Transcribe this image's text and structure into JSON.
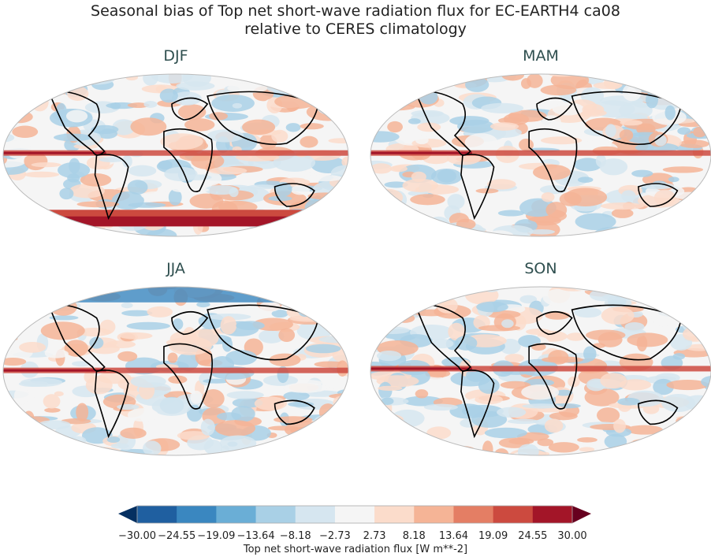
{
  "title_line1": "Seasonal bias of Top net short-wave radiation flux for EC-EARTH4 ca08",
  "title_line2": "relative to CERES climatology",
  "panels": [
    {
      "label": "DJF",
      "key": "djf"
    },
    {
      "label": "MAM",
      "key": "mam"
    },
    {
      "label": "JJA",
      "key": "jja"
    },
    {
      "label": "SON",
      "key": "son"
    }
  ],
  "colorbar": {
    "label": "Top net short-wave radiation flux [W m**-2]",
    "ticks": [
      "−30.00",
      "−24.55",
      "−19.09",
      "−13.64",
      "−8.18",
      "−2.73",
      "2.73",
      "8.18",
      "13.64",
      "19.09",
      "24.55",
      "30.00"
    ],
    "colors": [
      "#1f5fa0",
      "#3a87c0",
      "#6aaed6",
      "#a9d0e6",
      "#d6e6f0",
      "#f5f5f5",
      "#fbdccb",
      "#f5b496",
      "#e47e64",
      "#cc4a3f",
      "#a31528"
    ],
    "under_color": "#053061",
    "over_color": "#67001f",
    "extend": "both",
    "colormap": "RdBu_r"
  }
}
